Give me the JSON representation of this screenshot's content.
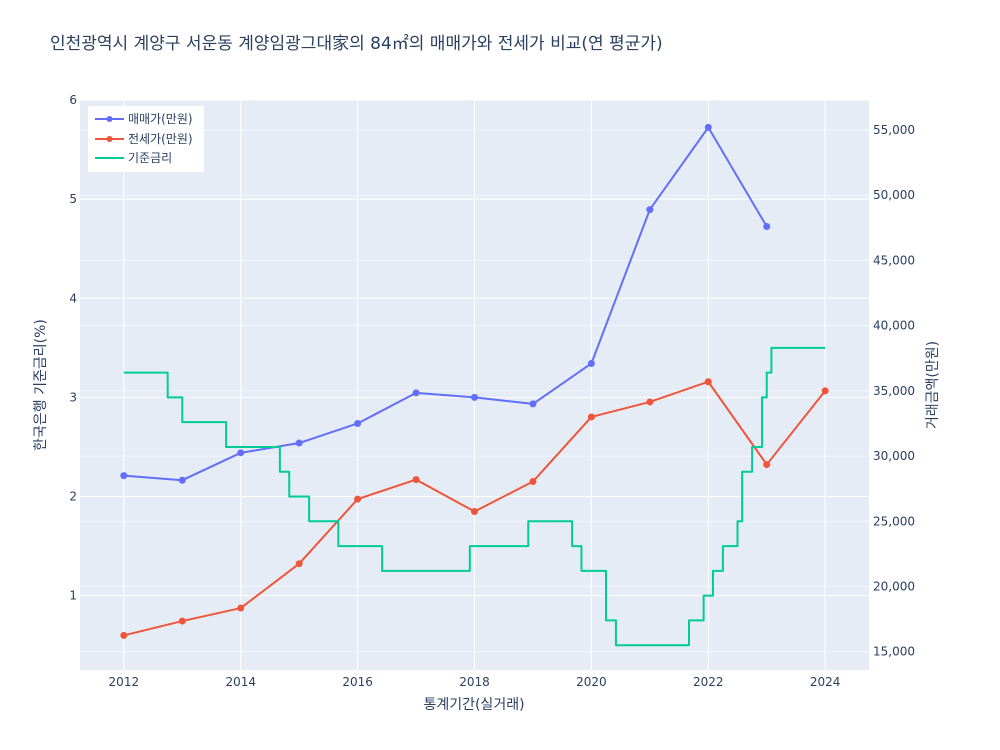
{
  "chart_data": {
    "type": "line",
    "title": "인천광역시 계양구 서운동 계양임광그대家의 84㎡의 매매가와 전세가 비교(연 평균가)",
    "xlabel": "통계기간(실거래)",
    "ylabel_left": "한국은행 기준금리(%)",
    "ylabel_right": "거래금액(만원)",
    "x_range": [
      2011.25,
      2024.75
    ],
    "x_ticks": [
      "2012",
      "2014",
      "2016",
      "2018",
      "2020",
      "2022",
      "2024"
    ],
    "ylim_left": [
      0.25,
      6.0
    ],
    "y_ticks_left": [
      "1",
      "2",
      "3",
      "4",
      "5",
      "6"
    ],
    "ylim_right": [
      13600,
      57300
    ],
    "y_ticks_right": [
      "15,000",
      "20,000",
      "25,000",
      "30,000",
      "35,000",
      "40,000",
      "45,000",
      "50,000",
      "55,000"
    ],
    "grid": true,
    "legend_position": "top-left",
    "series": [
      {
        "name": "매매가(만원)",
        "axis": "right",
        "color": "#636efa",
        "marker": true,
        "x": [
          2012,
          2013,
          2014,
          2015,
          2016,
          2017,
          2018,
          2019,
          2020,
          2021,
          2022,
          2023
        ],
        "y": [
          28500,
          28150,
          30250,
          31000,
          32500,
          34850,
          34500,
          34000,
          37100,
          48900,
          55200,
          47600
        ]
      },
      {
        "name": "전세가(만원)",
        "axis": "right",
        "color": "#ef553b",
        "marker": true,
        "x": [
          2012,
          2013,
          2014,
          2015,
          2016,
          2017,
          2018,
          2019,
          2020,
          2021,
          2022,
          2023,
          2024
        ],
        "y": [
          16250,
          17350,
          18350,
          21750,
          26700,
          28200,
          25750,
          28050,
          33000,
          34150,
          35700,
          29350,
          35000
        ]
      },
      {
        "name": "기준금리",
        "axis": "left",
        "color": "#00cc96",
        "marker": false,
        "step": true,
        "x": [
          2012.0,
          2012.5,
          2012.75,
          2013.0,
          2013.33,
          2013.75,
          2014.0,
          2014.58,
          2014.67,
          2014.83,
          2015.17,
          2015.42,
          2015.67,
          2016.0,
          2016.42,
          2016.75,
          2017.0,
          2017.83,
          2017.92,
          2018.0,
          2018.83,
          2018.92,
          2019.0,
          2019.5,
          2019.67,
          2019.83,
          2020.0,
          2020.17,
          2020.25,
          2020.33,
          2020.42,
          2021.0,
          2021.58,
          2021.67,
          2021.83,
          2021.92,
          2022.0,
          2022.08,
          2022.25,
          2022.42,
          2022.5,
          2022.58,
          2022.75,
          2022.83,
          2022.92,
          2023.0,
          2023.08,
          2023.5,
          2024.0
        ],
        "y": [
          3.25,
          3.25,
          3.0,
          2.75,
          2.75,
          2.5,
          2.5,
          2.5,
          2.25,
          2.0,
          1.75,
          1.75,
          1.5,
          1.5,
          1.25,
          1.25,
          1.25,
          1.25,
          1.5,
          1.5,
          1.5,
          1.75,
          1.75,
          1.75,
          1.5,
          1.25,
          1.25,
          1.25,
          0.75,
          0.75,
          0.5,
          0.5,
          0.5,
          0.75,
          0.75,
          1.0,
          1.0,
          1.25,
          1.5,
          1.5,
          1.75,
          2.25,
          2.5,
          2.5,
          3.0,
          3.25,
          3.5,
          3.5,
          3.5
        ]
      }
    ]
  }
}
